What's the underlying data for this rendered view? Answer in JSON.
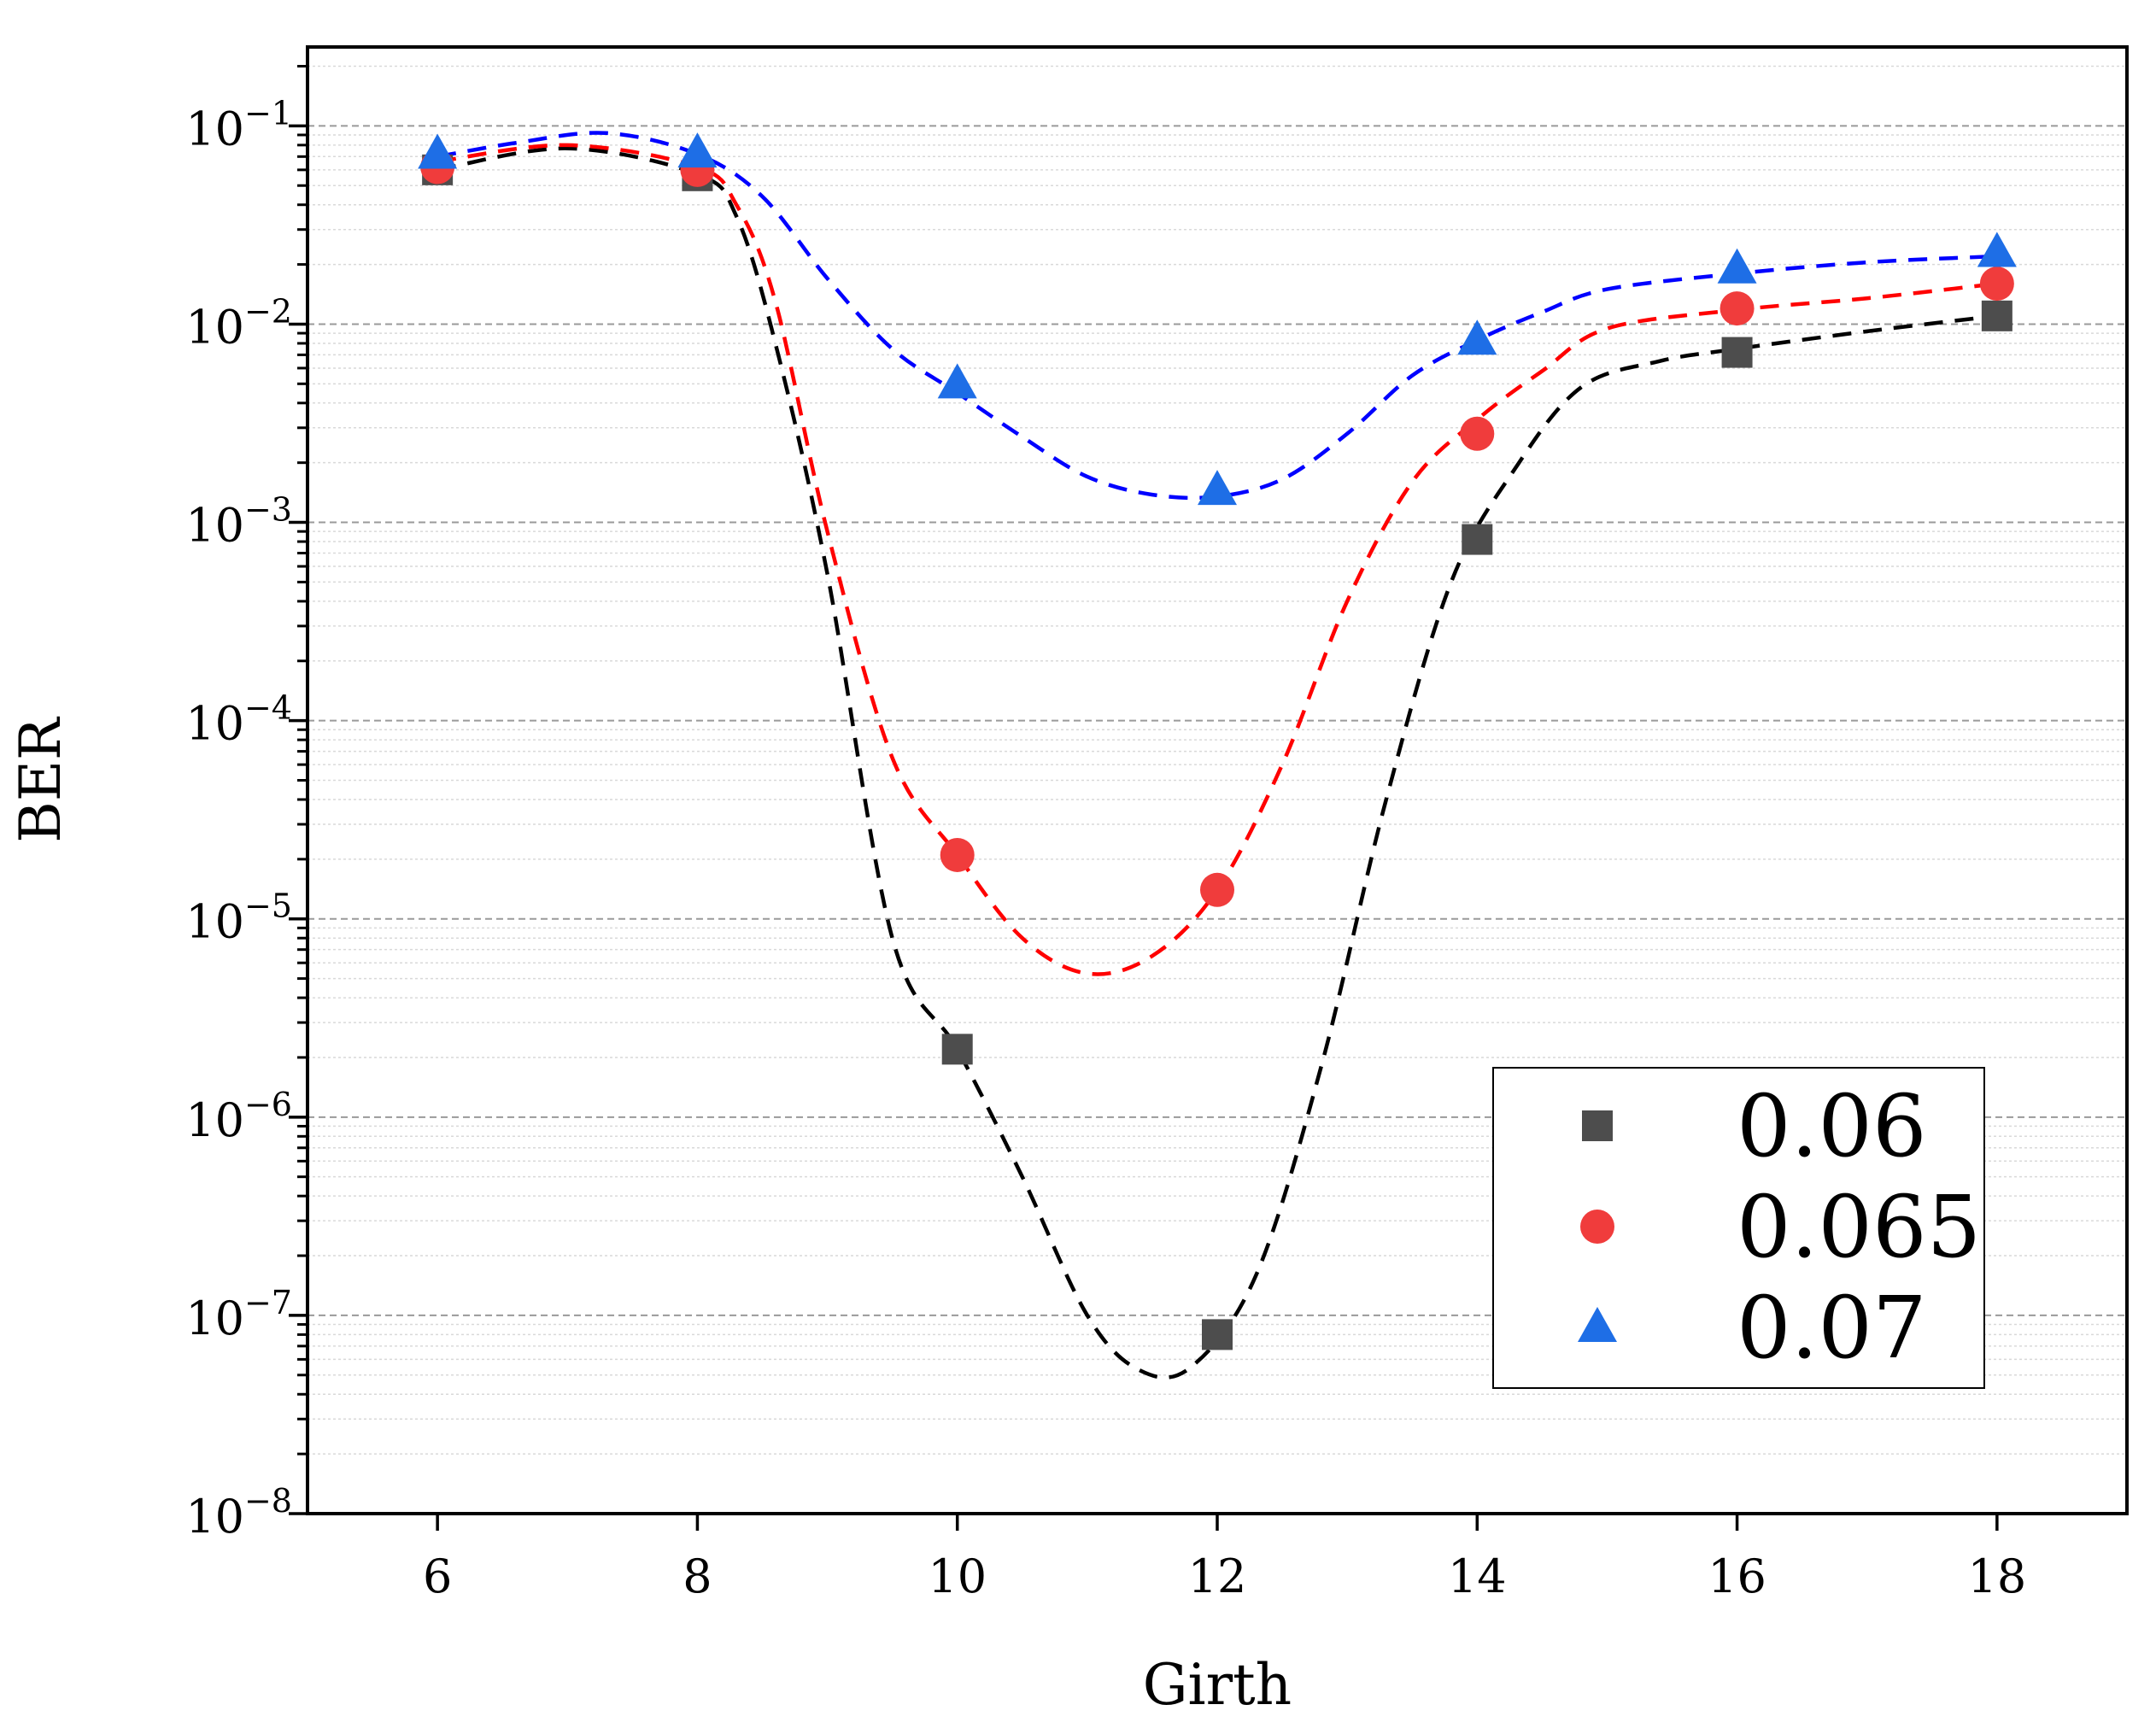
{
  "chart_data": {
    "type": "scatter",
    "title": "",
    "xlabel": "Girth",
    "ylabel": "BER",
    "x_ticks": [
      6,
      8,
      10,
      12,
      14,
      16,
      18
    ],
    "y_ticks": [
      {
        "value": 1e-08,
        "base": "10",
        "exp": "−8"
      },
      {
        "value": 1e-07,
        "base": "10",
        "exp": "−7"
      },
      {
        "value": 1e-06,
        "base": "10",
        "exp": "−6"
      },
      {
        "value": 1e-05,
        "base": "10",
        "exp": "−5"
      },
      {
        "value": 0.0001,
        "base": "10",
        "exp": "−4"
      },
      {
        "value": 0.001,
        "base": "10",
        "exp": "−3"
      },
      {
        "value": 0.01,
        "base": "10",
        "exp": "−2"
      },
      {
        "value": 0.1,
        "base": "10",
        "exp": "−1"
      }
    ],
    "xlim": [
      5,
      19
    ],
    "ylim": [
      1e-08,
      0.25
    ],
    "yscale": "log",
    "grid": true,
    "legend_position": "lower-right",
    "series": [
      {
        "name": "0.06",
        "marker": "square",
        "color": "#4d4d4d",
        "line_color": "#000000",
        "x": [
          6,
          8,
          10,
          12,
          14,
          16,
          18
        ],
        "values": [
          0.06,
          0.056,
          2.2e-06,
          8e-08,
          0.00082,
          0.0072,
          0.011
        ],
        "fit_x": [
          6,
          7,
          8,
          8.3,
          8.6,
          9,
          9.5,
          10,
          10.5,
          11,
          11.4,
          11.8,
          12.3,
          12.8,
          13.3,
          13.8,
          14.3,
          14.8,
          15.4,
          16,
          17,
          18
        ],
        "fit_y": [
          0.06,
          0.077,
          0.057,
          0.035,
          0.008,
          0.00055,
          8e-06,
          2.2e-06,
          5e-07,
          1e-07,
          5.3e-08,
          5.5e-08,
          1.6e-07,
          1.8e-06,
          4e-05,
          0.0005,
          0.0019,
          0.0048,
          0.0065,
          0.0075,
          0.0092,
          0.011
        ]
      },
      {
        "name": "0.065",
        "marker": "circle",
        "color": "#f03c3c",
        "line_color": "#ff0000",
        "x": [
          6,
          8,
          10,
          12,
          14,
          16,
          18
        ],
        "values": [
          0.062,
          0.06,
          2.1e-05,
          1.4e-05,
          0.0028,
          0.012,
          0.016
        ],
        "fit_x": [
          6,
          7,
          8,
          8.3,
          8.6,
          9,
          9.5,
          10,
          10.5,
          11,
          11.5,
          12,
          12.5,
          13,
          13.5,
          14,
          14.5,
          15,
          16,
          17,
          18
        ],
        "fit_y": [
          0.066,
          0.08,
          0.062,
          0.04,
          0.013,
          0.0009,
          6.5e-05,
          2.1e-05,
          8e-06,
          5.3e-06,
          6.5e-06,
          1.4e-05,
          6e-05,
          0.0004,
          0.0016,
          0.0033,
          0.0058,
          0.0095,
          0.0118,
          0.0135,
          0.016
        ]
      },
      {
        "name": "0.07",
        "marker": "triangle",
        "color": "#1e6ee6",
        "line_color": "#0000ff",
        "x": [
          6,
          8,
          10,
          12,
          14,
          16,
          18
        ],
        "values": [
          0.072,
          0.073,
          0.005,
          0.00145,
          0.0083,
          0.019,
          0.023
        ],
        "fit_x": [
          6,
          6.6,
          7.3,
          8,
          8.5,
          9,
          9.5,
          10,
          10.5,
          11,
          11.5,
          12,
          12.5,
          13,
          13.5,
          14,
          14.5,
          15,
          16,
          17,
          18
        ],
        "fit_y": [
          0.07,
          0.082,
          0.092,
          0.072,
          0.044,
          0.017,
          0.0075,
          0.0045,
          0.0027,
          0.0017,
          0.00138,
          0.00135,
          0.00165,
          0.0028,
          0.0055,
          0.0083,
          0.0115,
          0.015,
          0.018,
          0.0205,
          0.022
        ]
      }
    ]
  }
}
